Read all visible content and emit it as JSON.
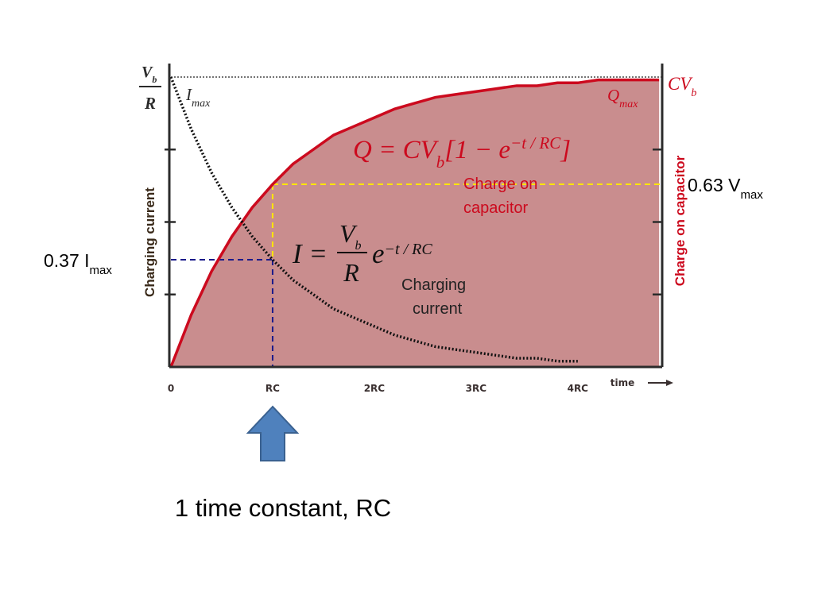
{
  "chart_data": {
    "type": "line",
    "x": [
      0,
      0.2,
      0.4,
      0.6,
      0.8,
      1.0,
      1.2,
      1.4,
      1.6,
      1.8,
      2.0,
      2.2,
      2.4,
      2.6,
      2.8,
      3.0,
      3.2,
      3.4,
      3.6,
      3.8,
      4.0,
      4.2,
      4.4,
      4.6,
      4.8
    ],
    "series": [
      {
        "name": "Charge on capacitor",
        "color": "#cc0a1e",
        "fill": "#c98d8e",
        "values": [
          0,
          0.18,
          0.33,
          0.45,
          0.55,
          0.63,
          0.7,
          0.75,
          0.8,
          0.83,
          0.86,
          0.89,
          0.91,
          0.93,
          0.94,
          0.95,
          0.96,
          0.97,
          0.97,
          0.98,
          0.98,
          0.99,
          0.99,
          0.99,
          0.99
        ]
      },
      {
        "name": "Charging current",
        "color": "#111111",
        "style": "dotted",
        "values": [
          1,
          0.82,
          0.67,
          0.55,
          0.45,
          0.37,
          0.3,
          0.25,
          0.2,
          0.17,
          0.14,
          0.11,
          0.09,
          0.07,
          0.06,
          0.05,
          0.04,
          0.03,
          0.03,
          0.02,
          0.02,
          null,
          null,
          null,
          null
        ]
      }
    ],
    "xlim": [
      0,
      4.83
    ],
    "ylim": [
      0,
      1
    ],
    "xticks": [
      0,
      {
        "value": 1,
        "label": "RC"
      },
      {
        "value": 2,
        "label": "2RC"
      },
      {
        "value": 3,
        "label": "3RC"
      },
      {
        "value": 4,
        "label": "4RC"
      }
    ],
    "yticks": [
      0.25,
      0.5,
      0.75
    ],
    "x_label": "time",
    "markers": [
      {
        "x": 1,
        "y": 0.63,
        "color": "#ffe600",
        "side": "right",
        "label": [
          {
            "text": "0.63 V"
          },
          {
            "sub": "max"
          }
        ]
      },
      {
        "x": 1,
        "y": 0.37,
        "color": "#1a1a8a",
        "side": "left",
        "label": [
          {
            "text": "0.37 I"
          },
          {
            "sub": "max"
          }
        ]
      }
    ],
    "top_left_label": {
      "num": "V",
      "num_sub": "b",
      "den": "R"
    },
    "current_max_label": [
      {
        "text": "I"
      },
      {
        "sub": "max"
      }
    ],
    "charge_max_label": [
      {
        "text": "Q"
      },
      {
        "sub": "max"
      }
    ],
    "charge_max_value_label": [
      {
        "text": "CV"
      },
      {
        "sub": "b"
      }
    ],
    "charge_equation": [
      {
        "text": "Q = CV"
      },
      {
        "sub": "b"
      },
      {
        "text": "[1 − e"
      },
      {
        "sup": "−t / RC"
      },
      {
        "text": "]"
      }
    ],
    "current_equation": {
      "lhs": "I =",
      "num": "V",
      "num_sub": "b",
      "den": "R",
      "factor": "e",
      "sup": "−t / RC"
    },
    "annotations": [
      {
        "lines": [
          "Charge on",
          "capacitor"
        ],
        "color": "#cc0a1e"
      },
      {
        "lines": [
          "Charging",
          "current"
        ],
        "color": "#222222"
      }
    ],
    "caption": "1 time constant, RC"
  }
}
